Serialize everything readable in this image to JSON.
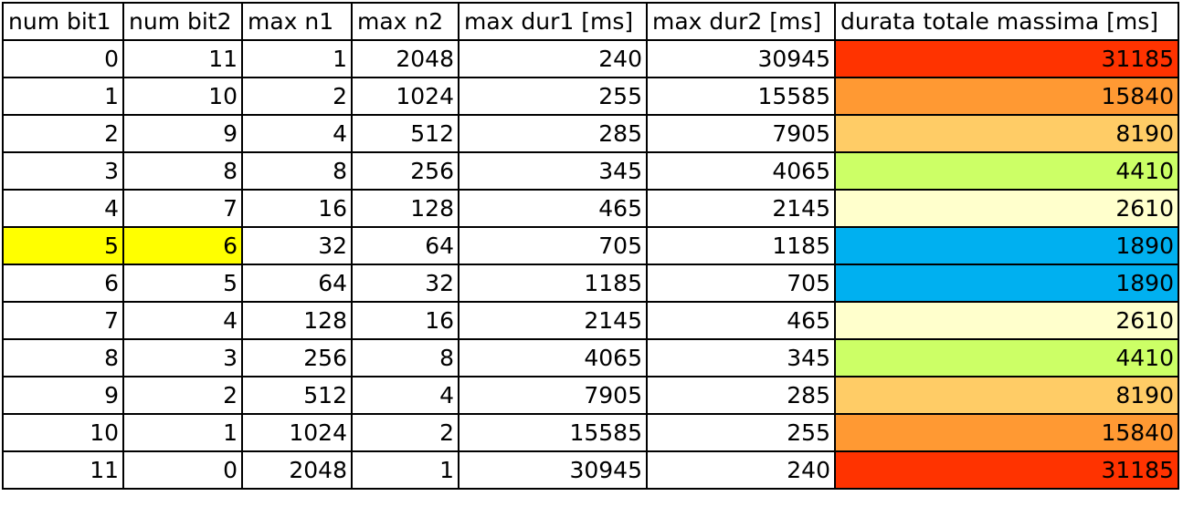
{
  "headers": [
    "num bit1",
    "num bit2",
    "max n1",
    "max n2",
    "max dur1 [ms]",
    "max dur2 [ms]",
    "durata totale massima [ms]"
  ],
  "rows": [
    [
      "0",
      "11",
      "1",
      "2048",
      "240",
      "30945",
      "31185"
    ],
    [
      "1",
      "10",
      "2",
      "1024",
      "255",
      "15585",
      "15840"
    ],
    [
      "2",
      "9",
      "4",
      "512",
      "285",
      "7905",
      "8190"
    ],
    [
      "3",
      "8",
      "8",
      "256",
      "345",
      "4065",
      "4410"
    ],
    [
      "4",
      "7",
      "16",
      "128",
      "465",
      "2145",
      "2610"
    ],
    [
      "5",
      "6",
      "32",
      "64",
      "705",
      "1185",
      "1890"
    ],
    [
      "6",
      "5",
      "64",
      "32",
      "1185",
      "705",
      "1890"
    ],
    [
      "7",
      "4",
      "128",
      "16",
      "2145",
      "465",
      "2610"
    ],
    [
      "8",
      "3",
      "256",
      "8",
      "4065",
      "345",
      "4410"
    ],
    [
      "9",
      "2",
      "512",
      "4",
      "7905",
      "285",
      "8190"
    ],
    [
      "10",
      "1",
      "1024",
      "2",
      "15585",
      "255",
      "15840"
    ],
    [
      "11",
      "0",
      "2048",
      "1",
      "30945",
      "240",
      "31185"
    ]
  ],
  "highlight_row_index": 5,
  "highlight_color": "#FFFF00",
  "total_column_fill_colors": [
    "#FF3300",
    "#FF9933",
    "#FFCC66",
    "#CCFF66",
    "#FFFFCC",
    "#00B0F0",
    "#00B0F0",
    "#FFFFCC",
    "#CCFF66",
    "#FFCC66",
    "#FF9933",
    "#FF3300"
  ]
}
